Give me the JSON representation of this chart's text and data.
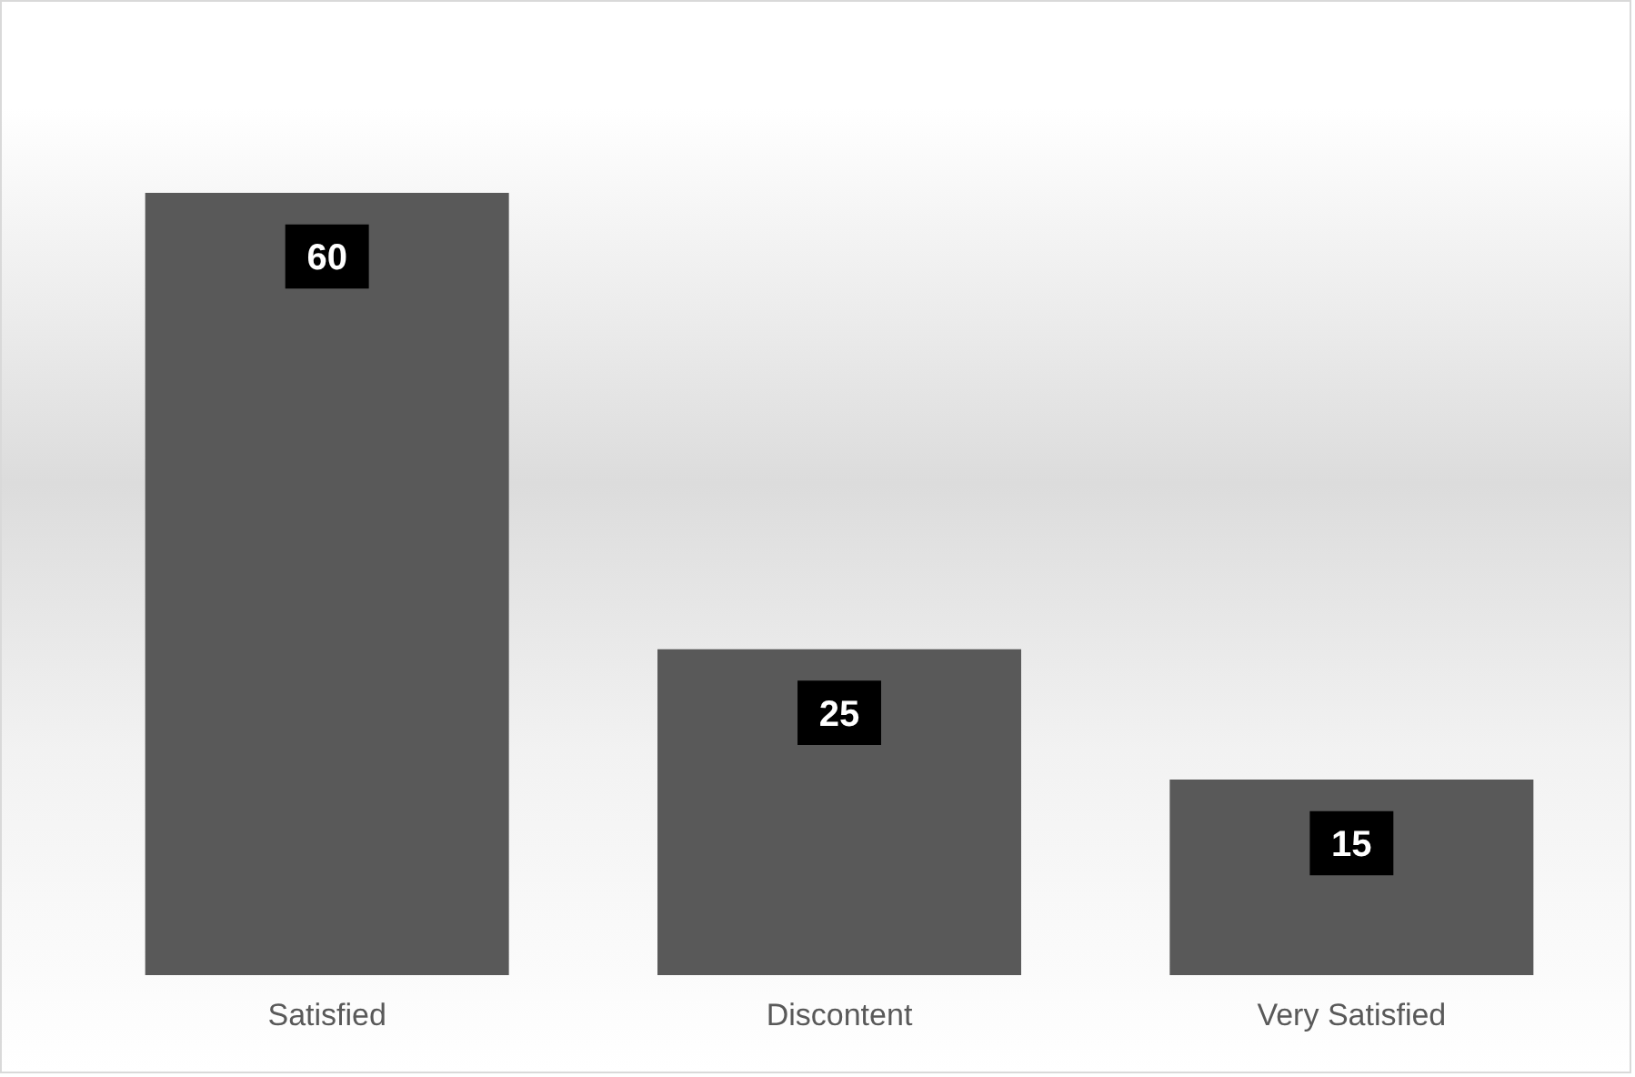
{
  "chart_data": {
    "type": "bar",
    "categories": [
      "Satisfied",
      "Discontent",
      "Very Satisfied"
    ],
    "values": [
      60,
      25,
      15
    ],
    "color": "#595959",
    "data_labels": true
  }
}
